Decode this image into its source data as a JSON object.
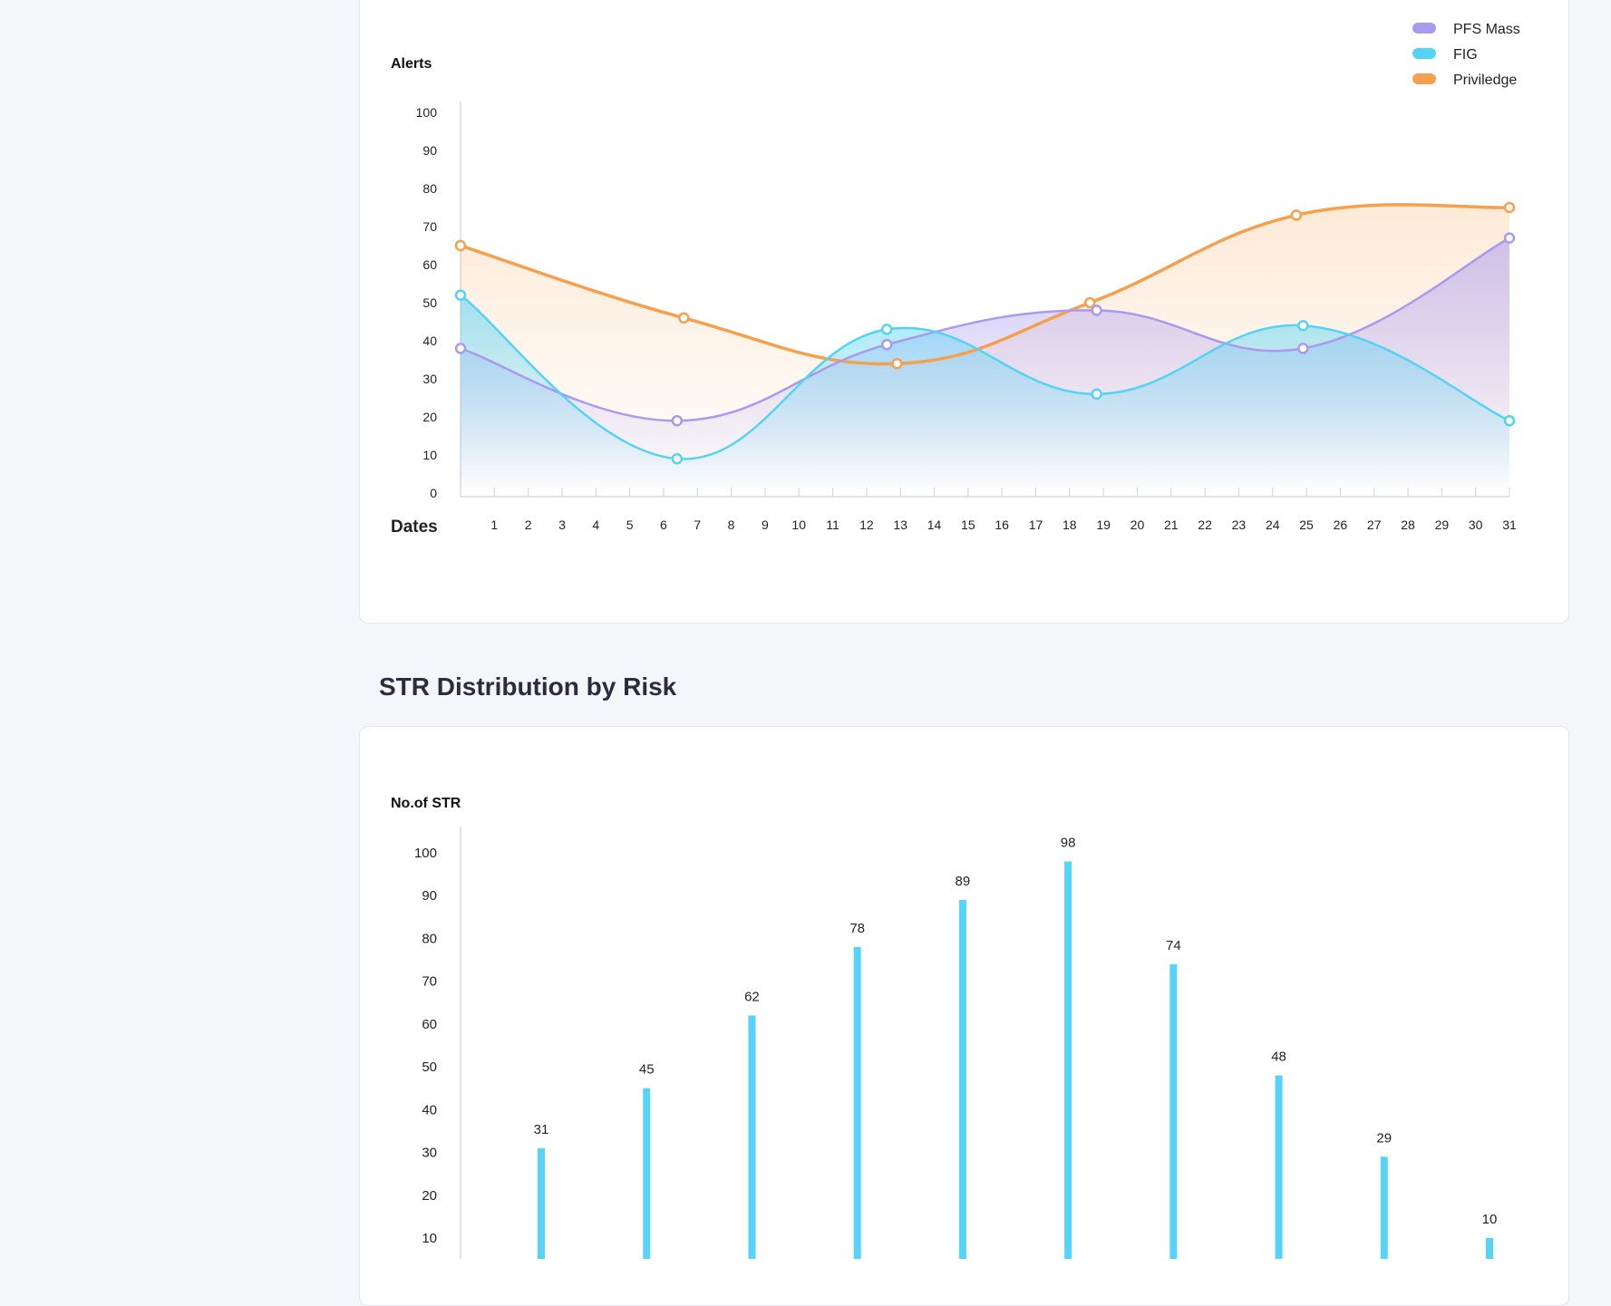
{
  "section": {
    "title": "STR Distribution by Risk"
  },
  "colors": {
    "pfs_mass": "#a99af0",
    "fig": "#55d3f5",
    "priviledge": "#f6a04d",
    "bar": "#56d4f7",
    "axis": "#d8d8e2",
    "tick_text": "#222222"
  },
  "chart_data": [
    {
      "type": "line",
      "ylabel": "Alerts",
      "xlabel": "Dates",
      "ylim": [
        0,
        100
      ],
      "yticks": [
        0,
        10,
        20,
        30,
        40,
        50,
        60,
        70,
        80,
        90,
        100
      ],
      "categories": [
        "1",
        "2",
        "3",
        "4",
        "5",
        "6",
        "7",
        "8",
        "9",
        "10",
        "11",
        "12",
        "13",
        "14",
        "15",
        "16",
        "17",
        "18",
        "19",
        "20",
        "21",
        "22",
        "23",
        "24",
        "25",
        "26",
        "27",
        "28",
        "29",
        "30",
        "31"
      ],
      "legend_position": "top-right",
      "grid": false,
      "series": [
        {
          "name": "PFS Mass",
          "color": "#a99af0",
          "points": [
            [
              0,
              38
            ],
            [
              6.4,
              19
            ],
            [
              12.6,
              39
            ],
            [
              18.8,
              48
            ],
            [
              24.9,
              38
            ],
            [
              31,
              67
            ]
          ]
        },
        {
          "name": "FIG",
          "color": "#55d3f5",
          "points": [
            [
              0,
              52
            ],
            [
              6.4,
              9
            ],
            [
              12.6,
              43
            ],
            [
              18.8,
              26
            ],
            [
              24.9,
              44
            ],
            [
              31,
              19
            ]
          ]
        },
        {
          "name": "Priviledge",
          "color": "#f6a04d",
          "points": [
            [
              0,
              65
            ],
            [
              6.6,
              46
            ],
            [
              12.9,
              34
            ],
            [
              18.6,
              50
            ],
            [
              24.7,
              73
            ],
            [
              31,
              75
            ]
          ]
        }
      ]
    },
    {
      "type": "bar",
      "ylabel": "No.of STR",
      "ylim": [
        0,
        100
      ],
      "yticks": [
        10,
        20,
        30,
        40,
        50,
        60,
        70,
        80,
        90,
        100
      ],
      "values": [
        31,
        45,
        62,
        78,
        89,
        98,
        74,
        48,
        29,
        10
      ],
      "data_labels": [
        "31",
        "45",
        "62",
        "78",
        "89",
        "98",
        "74",
        "48",
        "29",
        "10"
      ],
      "bar_color": "#56d4f7",
      "grid": false
    }
  ]
}
